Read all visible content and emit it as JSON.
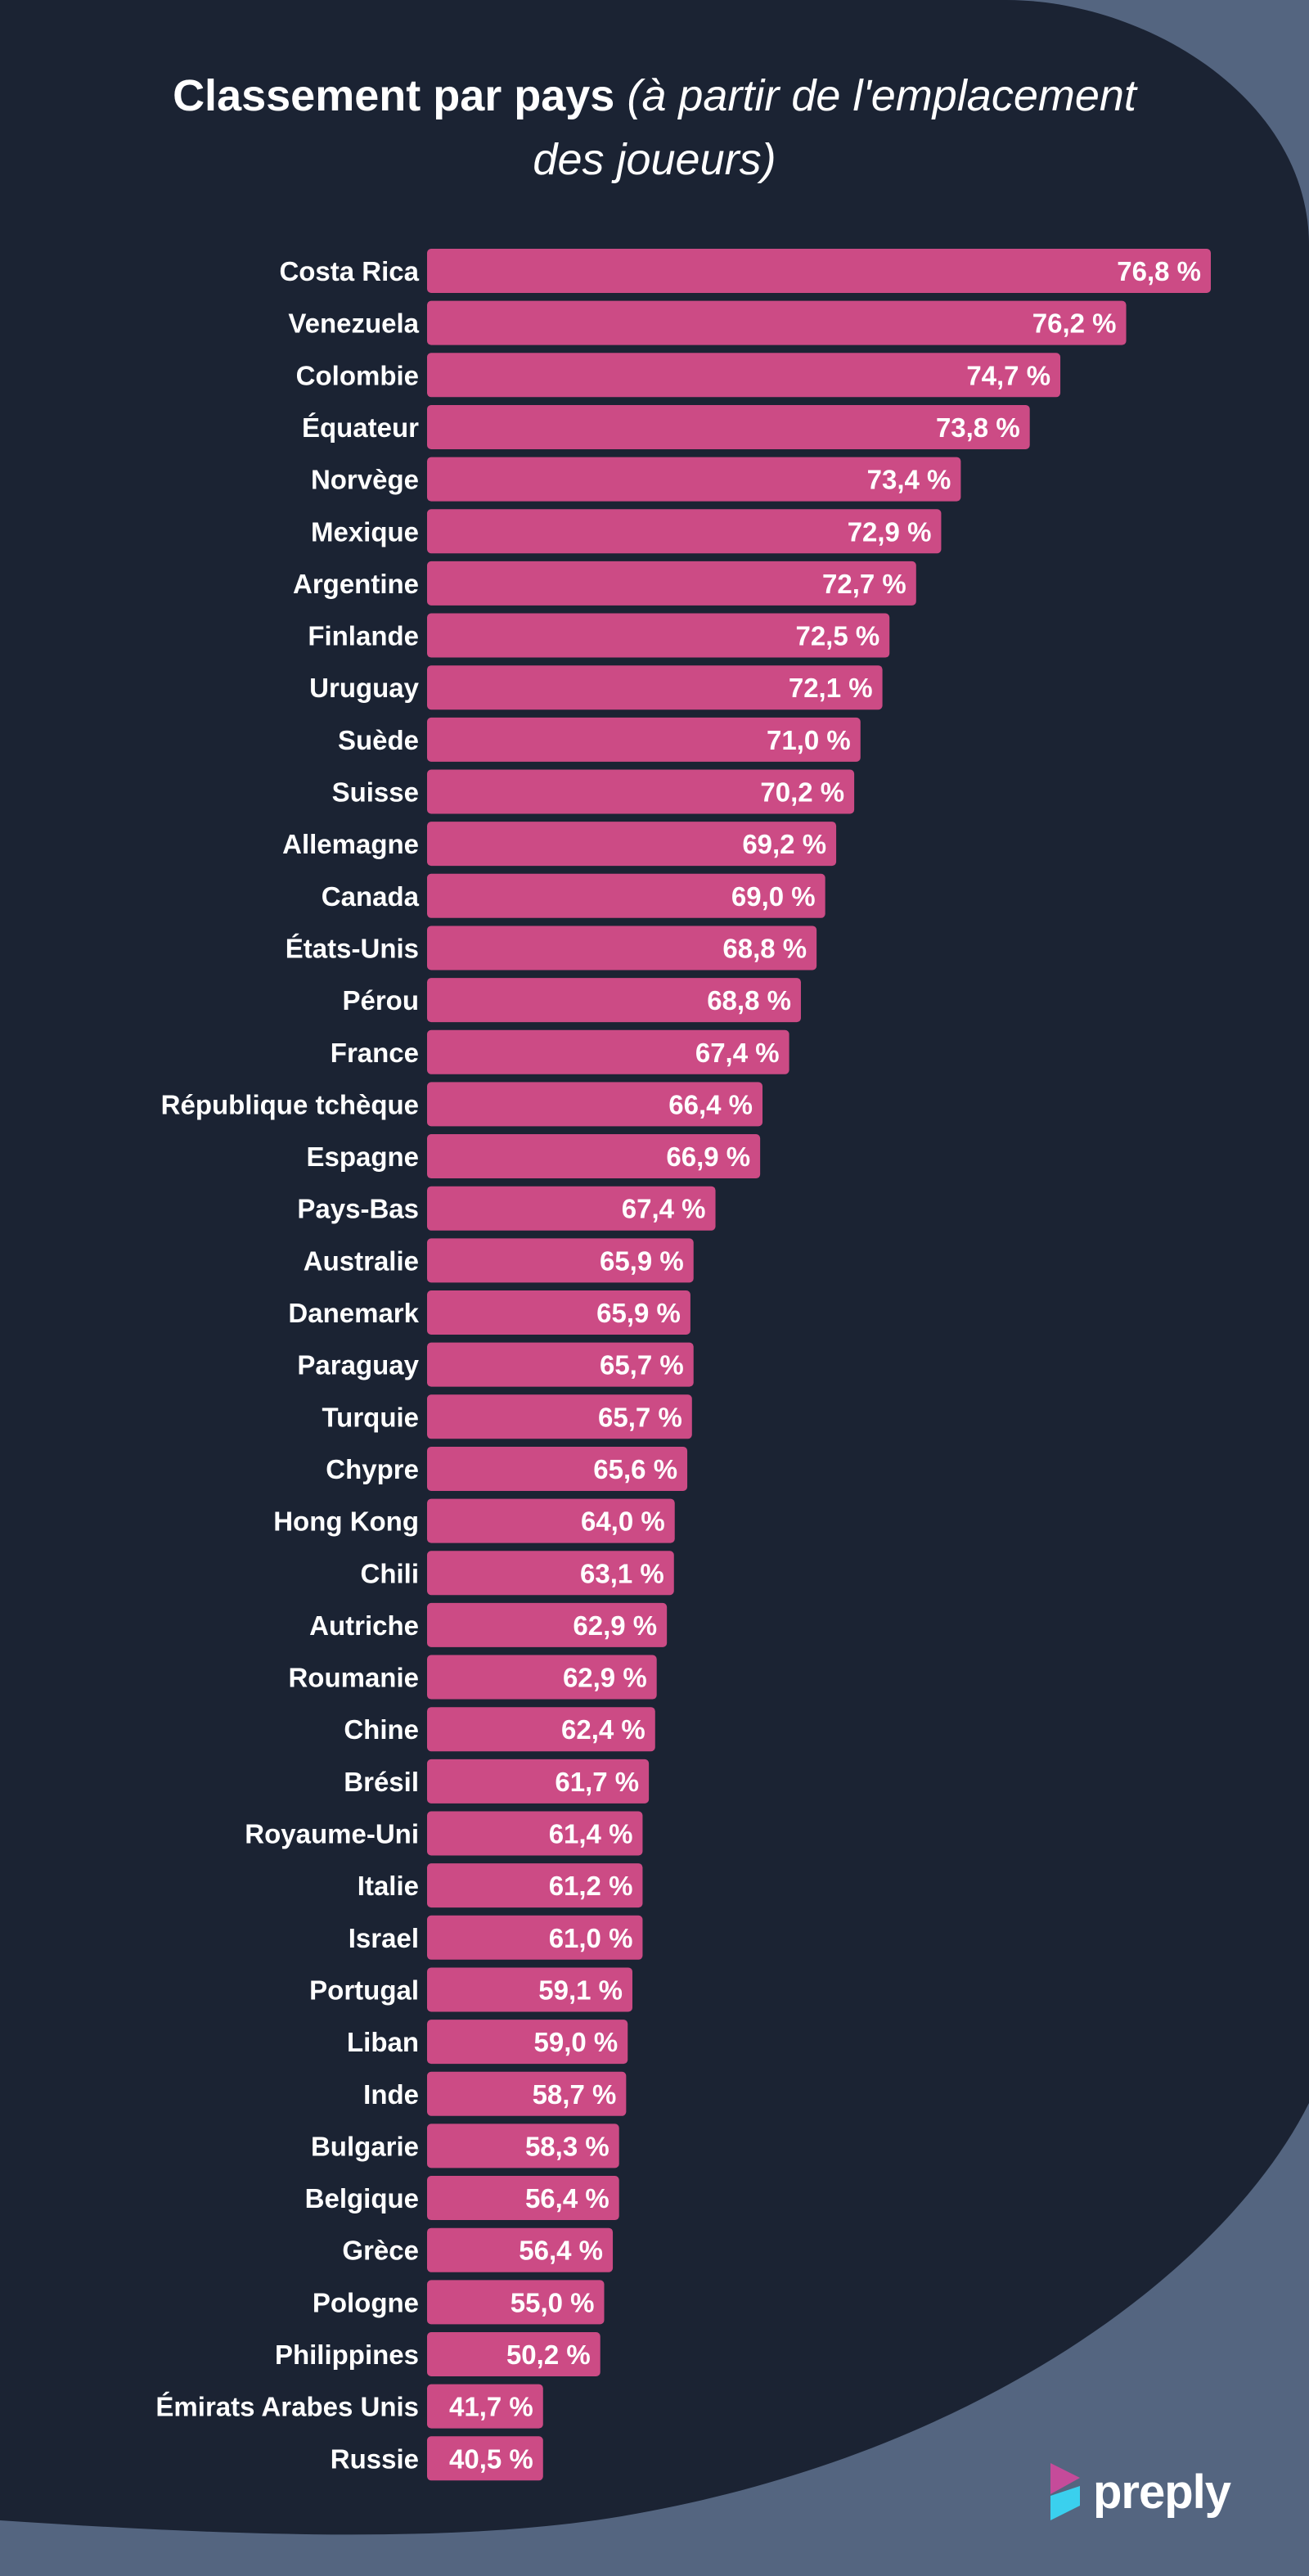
{
  "title": {
    "main": "Classement par pays",
    "sub_line1": "(à partir de l'emplacement",
    "sub_line2": "des joueurs)"
  },
  "brand": {
    "name": "preply",
    "icon": "preply-logo-icon"
  },
  "colors": {
    "background": "#1b2333",
    "page_edge": "#546580",
    "bar": "#cc4b85",
    "text": "#ffffff"
  },
  "chart_data": {
    "type": "bar",
    "orientation": "horizontal",
    "title": "Classement par pays (à partir de l'emplacement des joueurs)",
    "xlabel": "",
    "ylabel": "",
    "categories": [
      "Costa Rica",
      "Venezuela",
      "Colombie",
      "Équateur",
      "Norvège",
      "Mexique",
      "Argentine",
      "Finlande",
      "Uruguay",
      "Suède",
      "Suisse",
      "Allemagne",
      "Canada",
      "États-Unis",
      "Pérou",
      "France",
      "République tchèque",
      "Espagne",
      "Pays-Bas",
      "Australie",
      "Danemark",
      "Paraguay",
      "Turquie",
      "Chypre",
      "Hong Kong",
      "Chili",
      "Autriche",
      "Roumanie",
      "Chine",
      "Brésil",
      "Royaume-Uni",
      "Italie",
      "Israel",
      "Portugal",
      "Liban",
      "Inde",
      "Bulgarie",
      "Belgique",
      "Grèce",
      "Pologne",
      "Philippines",
      "Émirats Arabes Unis",
      "Russie"
    ],
    "values": [
      76.8,
      76.2,
      74.7,
      73.8,
      73.4,
      72.9,
      72.7,
      72.5,
      72.1,
      71.0,
      70.2,
      69.2,
      69.0,
      68.8,
      68.8,
      67.4,
      66.4,
      66.9,
      67.4,
      65.9,
      65.9,
      65.7,
      65.7,
      65.6,
      64.0,
      63.1,
      62.9,
      62.9,
      62.4,
      61.7,
      61.4,
      61.2,
      61.0,
      59.1,
      59.0,
      58.7,
      58.3,
      56.4,
      56.4,
      55.0,
      50.2,
      41.7,
      40.5
    ],
    "value_labels": [
      "76,8 %",
      "76,2 %",
      "74,7 %",
      "73,8 %",
      "73,4 %",
      "72,9 %",
      "72,7 %",
      "72,5 %",
      "72,1 %",
      "71,0 %",
      "70,2 %",
      "69,2 %",
      "69,0 %",
      "68,8 %",
      "68,8 %",
      "67,4 %",
      "66,4 %",
      "66,9 %",
      "67,4 %",
      "65,9 %",
      "65,9 %",
      "65,7 %",
      "65,7 %",
      "65,6 %",
      "64,0 %",
      "63,1 %",
      "62,9 %",
      "62,9 %",
      "62,4 %",
      "61,7 %",
      "61,4 %",
      "61,2 %",
      "61,0 %",
      "59,1 %",
      "59,0 %",
      "58,7 %",
      "58,3 %",
      "56,4 %",
      "56,4 %",
      "55,0 %",
      "50,2 %",
      "41,7 %",
      "40,5 %"
    ],
    "bar_lengths_relative": [
      1.0,
      0.892,
      0.808,
      0.769,
      0.681,
      0.656,
      0.624,
      0.59,
      0.581,
      0.553,
      0.545,
      0.522,
      0.508,
      0.497,
      0.477,
      0.462,
      0.428,
      0.425,
      0.368,
      0.34,
      0.336,
      0.34,
      0.338,
      0.332,
      0.316,
      0.315,
      0.306,
      0.293,
      0.291,
      0.283,
      0.275,
      0.275,
      0.275,
      0.262,
      0.256,
      0.254,
      0.245,
      0.245,
      0.237,
      0.226,
      0.221,
      0.148,
      0.148
    ],
    "legend": "none",
    "grid": false
  }
}
